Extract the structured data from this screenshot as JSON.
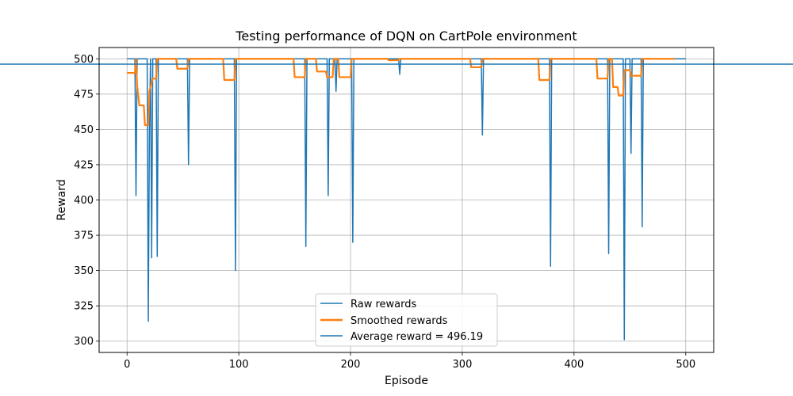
{
  "chart_data": {
    "type": "line",
    "title": "Testing performance of DQN on CartPole environment",
    "xlabel": "Episode",
    "ylabel": "Reward",
    "xlim": [
      -25,
      525
    ],
    "ylim": [
      292,
      508
    ],
    "xticks": [
      0,
      100,
      200,
      300,
      400,
      500
    ],
    "yticks": [
      300,
      325,
      350,
      375,
      400,
      425,
      450,
      475,
      500
    ],
    "grid": true,
    "legend_position": "bottom-center",
    "colors": {
      "raw": "#1f77b4",
      "smoothed": "#ff7f0e",
      "average": "#1f77b4"
    },
    "series": [
      {
        "name": "Raw rewards",
        "x_range": [
          0,
          500
        ],
        "baseline": 500,
        "dips": [
          [
            8,
            403
          ],
          [
            19,
            314
          ],
          [
            20,
            450
          ],
          [
            22,
            359
          ],
          [
            27,
            360
          ],
          [
            55,
            425
          ],
          [
            97,
            350
          ],
          [
            160,
            367
          ],
          [
            180,
            403
          ],
          [
            187,
            477
          ],
          [
            202,
            370
          ],
          [
            244,
            489
          ],
          [
            318,
            446
          ],
          [
            379,
            353
          ],
          [
            431,
            362
          ],
          [
            445,
            301
          ],
          [
            451,
            433
          ],
          [
            461,
            381
          ]
        ]
      },
      {
        "name": "Smoothed rewards",
        "points": [
          [
            0,
            490
          ],
          [
            7,
            490
          ],
          [
            8,
            500
          ],
          [
            9,
            481
          ],
          [
            11,
            467
          ],
          [
            15,
            467
          ],
          [
            16,
            453
          ],
          [
            19,
            453
          ],
          [
            20,
            477
          ],
          [
            23,
            486
          ],
          [
            26,
            486
          ],
          [
            27,
            500
          ],
          [
            44,
            500
          ],
          [
            45,
            493
          ],
          [
            54,
            493
          ],
          [
            55,
            500
          ],
          [
            86,
            500
          ],
          [
            87,
            485
          ],
          [
            96,
            485
          ],
          [
            97,
            500
          ],
          [
            149,
            500
          ],
          [
            150,
            487
          ],
          [
            159,
            487
          ],
          [
            160,
            500
          ],
          [
            169,
            500
          ],
          [
            170,
            491
          ],
          [
            178,
            491
          ],
          [
            179,
            487
          ],
          [
            184,
            487
          ],
          [
            185,
            500
          ],
          [
            189,
            500
          ],
          [
            190,
            487
          ],
          [
            200,
            487
          ],
          [
            201,
            500
          ],
          [
            233,
            500
          ],
          [
            234,
            499
          ],
          [
            243,
            499
          ],
          [
            244,
            500
          ],
          [
            307,
            500
          ],
          [
            308,
            494
          ],
          [
            317,
            494
          ],
          [
            318,
            500
          ],
          [
            368,
            500
          ],
          [
            369,
            485
          ],
          [
            378,
            485
          ],
          [
            379,
            500
          ],
          [
            420,
            500
          ],
          [
            421,
            486
          ],
          [
            430,
            486
          ],
          [
            431,
            500
          ],
          [
            434,
            500
          ],
          [
            435,
            480
          ],
          [
            439,
            480
          ],
          [
            440,
            474
          ],
          [
            444,
            474
          ],
          [
            445,
            492
          ],
          [
            450,
            492
          ],
          [
            451,
            488
          ],
          [
            460,
            488
          ],
          [
            461,
            500
          ],
          [
            490,
            500
          ]
        ]
      },
      {
        "name": "Average reward = 496.19",
        "hline": 496.19
      }
    ]
  }
}
